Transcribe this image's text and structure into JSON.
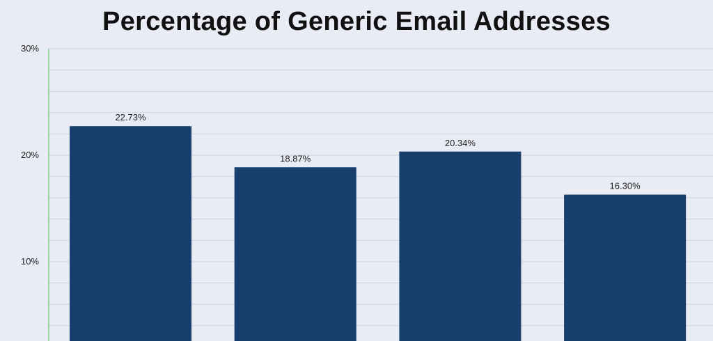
{
  "chart_data": {
    "type": "bar",
    "title": "Percentage of Generic Email Addresses",
    "categories": [
      "",
      "",
      "",
      ""
    ],
    "values": [
      22.73,
      18.87,
      20.34,
      16.3
    ],
    "value_labels": [
      "22.73%",
      "18.87%",
      "20.34%",
      "16.30%"
    ],
    "ylim": [
      0,
      30
    ],
    "yticks": [
      10,
      20,
      30
    ],
    "ytick_labels": [
      "10%",
      "20%",
      "30%"
    ],
    "grid": true,
    "colors": {
      "bar": "#173f6d",
      "background": "#e9ebf5",
      "grid": "#cfd3df",
      "axis": "#5cb85c"
    }
  }
}
